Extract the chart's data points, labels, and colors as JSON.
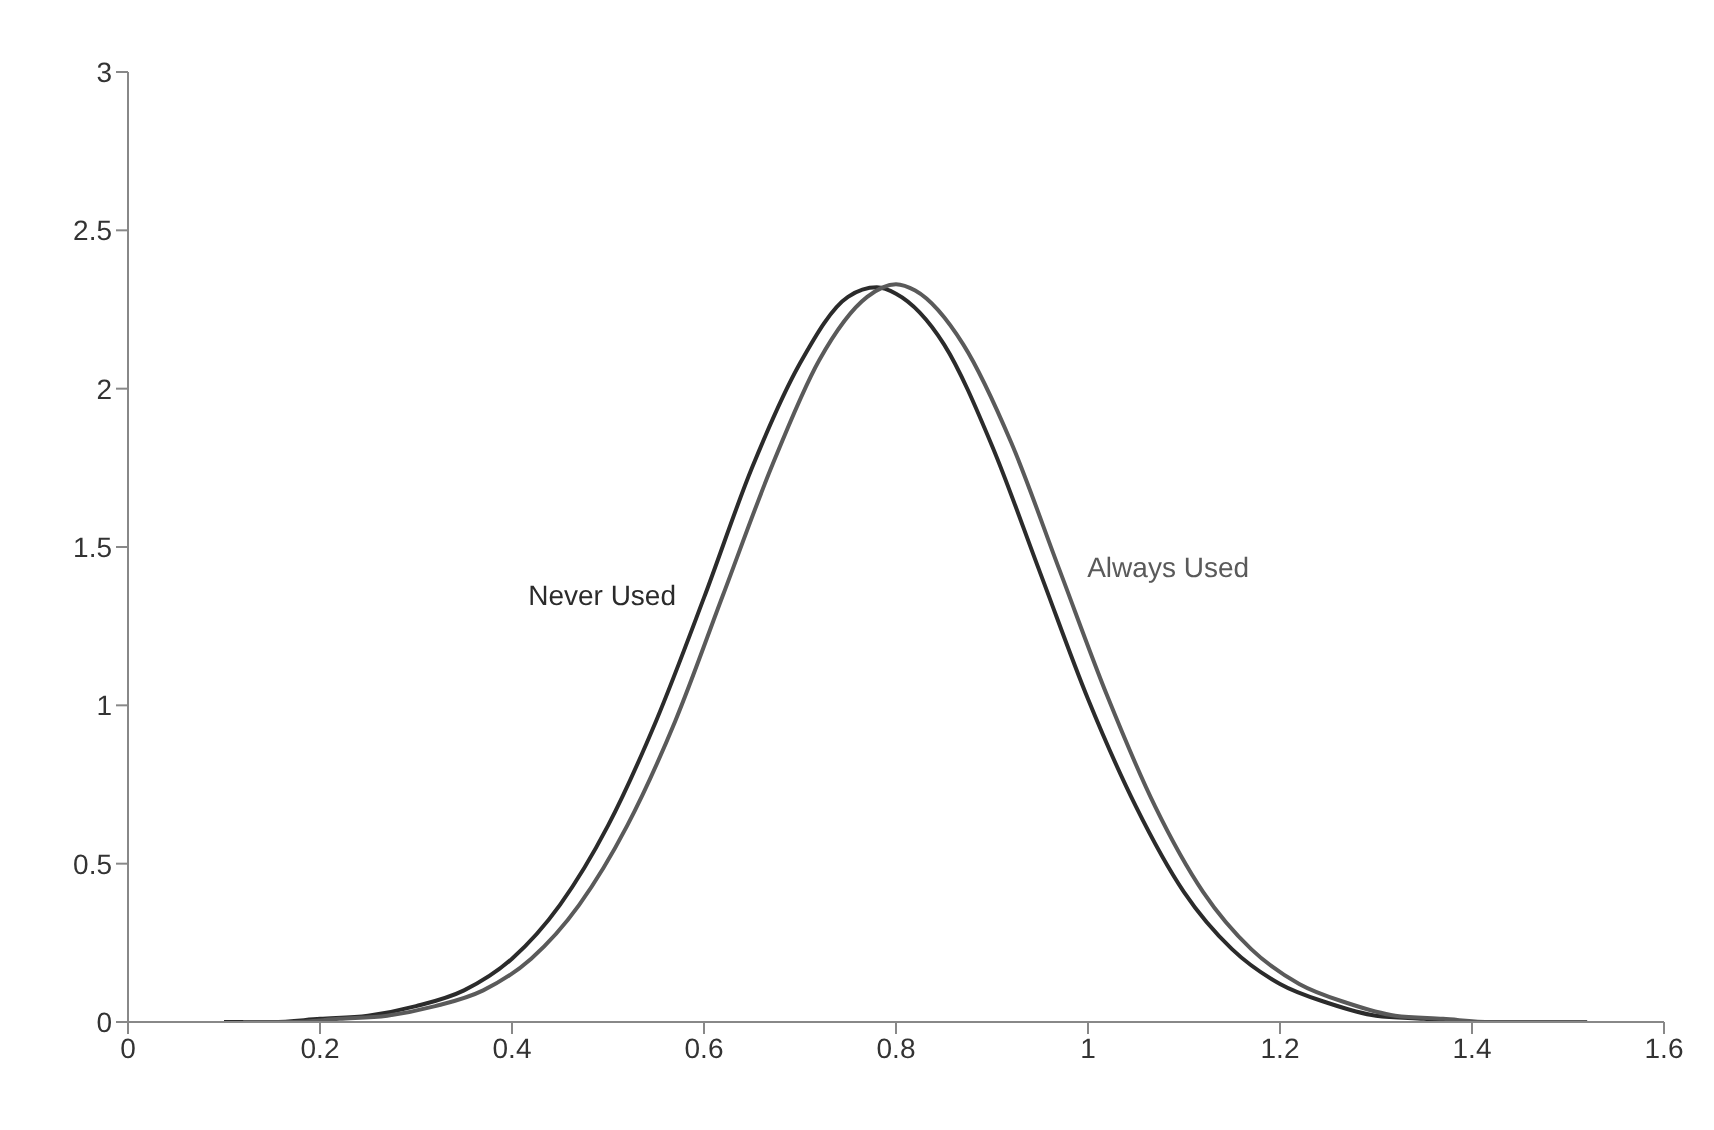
{
  "chart_data": {
    "type": "line",
    "xlim": [
      0,
      1.6
    ],
    "xticks": [
      0,
      0.2,
      0.4,
      0.6,
      0.8,
      1,
      1.2,
      1.4,
      1.6
    ],
    "ylim": [
      0,
      3
    ],
    "yticks": [
      0,
      0.5,
      1,
      1.5,
      2,
      2.5,
      3
    ],
    "grid": false,
    "legend": false,
    "marker": "none",
    "line_style": "solid",
    "series": [
      {
        "name": "Never Used",
        "color": "#2b2b2b",
        "x": [
          0.1,
          0.15,
          0.2,
          0.25,
          0.3,
          0.35,
          0.4,
          0.45,
          0.5,
          0.55,
          0.6,
          0.65,
          0.7,
          0.75,
          0.78,
          0.8,
          0.85,
          0.9,
          0.95,
          1,
          1.05,
          1.1,
          1.15,
          1.2,
          1.25,
          1.3,
          1.35,
          1.4,
          1.45,
          1.5
        ],
        "values": [
          0,
          0,
          0.01,
          0.02,
          0.05,
          0.1,
          0.2,
          0.37,
          0.62,
          0.95,
          1.34,
          1.75,
          2.08,
          2.29,
          2.32,
          2.3,
          2.14,
          1.82,
          1.42,
          1.02,
          0.68,
          0.41,
          0.23,
          0.12,
          0.06,
          0.02,
          0.01,
          0,
          0,
          0
        ]
      },
      {
        "name": "Always Used",
        "color": "#5a5a5a",
        "x": [
          0.12,
          0.17,
          0.22,
          0.27,
          0.32,
          0.37,
          0.42,
          0.47,
          0.52,
          0.57,
          0.62,
          0.67,
          0.72,
          0.77,
          0.8,
          0.82,
          0.87,
          0.92,
          0.97,
          1.02,
          1.07,
          1.12,
          1.17,
          1.22,
          1.27,
          1.32,
          1.37,
          1.42,
          1.47,
          1.52
        ],
        "values": [
          0,
          0,
          0.01,
          0.02,
          0.05,
          0.1,
          0.2,
          0.37,
          0.62,
          0.95,
          1.35,
          1.75,
          2.09,
          2.29,
          2.33,
          2.31,
          2.14,
          1.83,
          1.43,
          1.03,
          0.68,
          0.41,
          0.23,
          0.12,
          0.06,
          0.02,
          0.01,
          0,
          0,
          0
        ]
      }
    ]
  }
}
